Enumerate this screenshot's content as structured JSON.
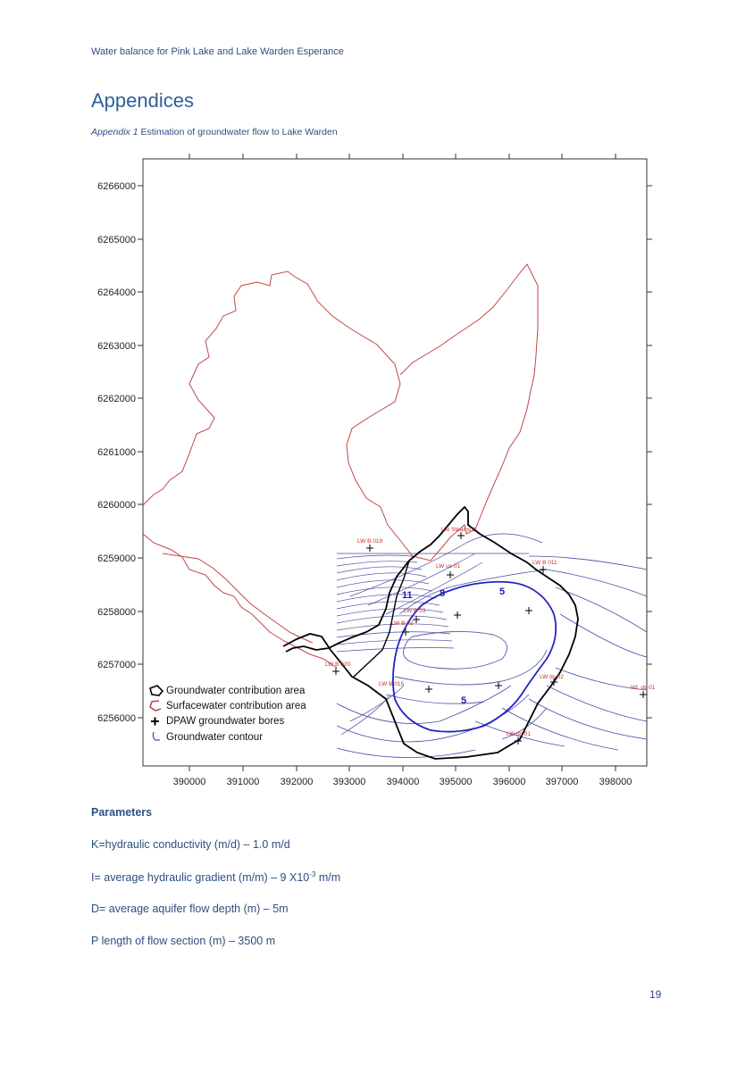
{
  "header": {
    "title": "Water balance for Pink Lake and Lake Warden Esperance"
  },
  "heading": "Appendices",
  "caption": {
    "label": "Appendix 1",
    "text": " Estimation of groundwater flow to Lake Warden"
  },
  "map": {
    "y_ticks": [
      "6266000",
      "6265000",
      "6264000",
      "6263000",
      "6262000",
      "6261000",
      "6260000",
      "6259000",
      "6258000",
      "6257000",
      "6256000"
    ],
    "x_ticks": [
      "390000",
      "391000",
      "392000",
      "393000",
      "394000",
      "395000",
      "396000",
      "397000",
      "398000"
    ],
    "bore_labels": [
      "LW B 019",
      "LW Steams 2",
      "LW us 01",
      "LW B 011",
      "LW B 03",
      "LW B 02",
      "LW B 020",
      "LW B 015",
      "LW ds 02",
      "WL ds 01",
      "LW ds 01"
    ],
    "contour_labels": [
      "11",
      "8",
      "5",
      "5"
    ],
    "legend": [
      {
        "label": "Groundwater contribution area",
        "icon": "black-polygon"
      },
      {
        "label": "Surfacewater contribution area",
        "icon": "red-polygon"
      },
      {
        "label": "DPAW groundwater bores",
        "icon": "cross"
      },
      {
        "label": "Groundwater contour",
        "icon": "blue-line"
      }
    ],
    "colors": {
      "catchment": "#c04040",
      "groundwater": "#000000",
      "contour": "#3a3aa0",
      "contour_main": "#2222c0"
    }
  },
  "parameters": {
    "heading": "Parameters",
    "k": "K=hydraulic conductivity (m/d) – 1.0 m/d",
    "i_pre": "I= average hydraulic gradient (m/m) – 9 X10",
    "i_sup": "-3",
    "i_post": " m/m",
    "d": "D= average aquifer flow depth (m) – 5m",
    "p": "P length of flow section (m) – 3500 m"
  },
  "page_number": "19"
}
